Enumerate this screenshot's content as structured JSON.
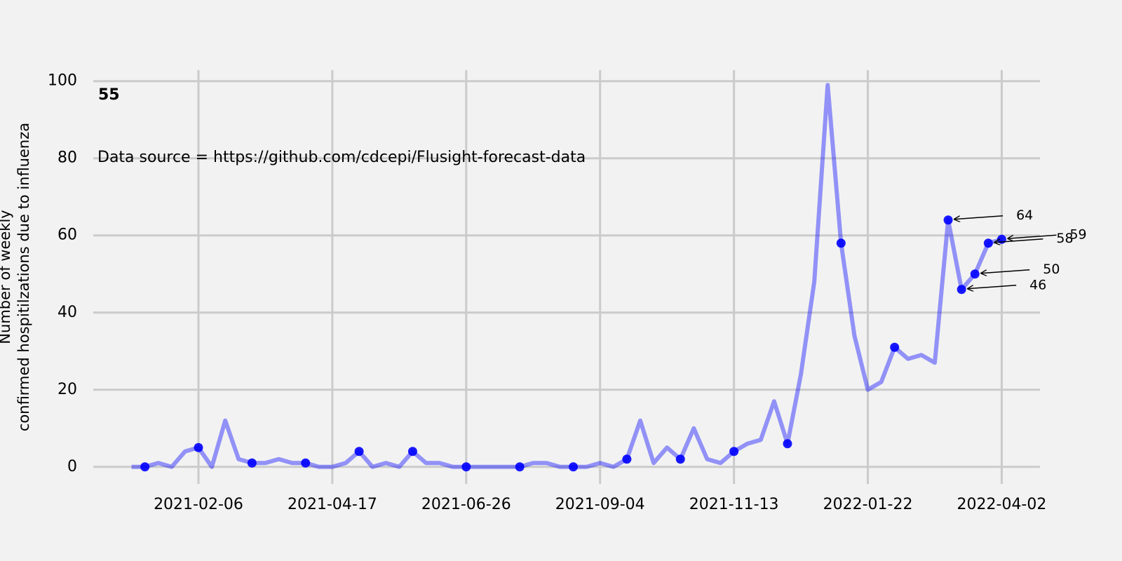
{
  "chart_data": {
    "type": "line",
    "title": "55",
    "source": "Data source = https://github.com/cdcepi/Flusight-forecast-data",
    "ylabel": [
      "Number of weekly",
      "confirmed hospitilzations due to influenza"
    ],
    "x": [
      "2021-01-02",
      "2021-01-09",
      "2021-01-16",
      "2021-01-23",
      "2021-01-30",
      "2021-02-06",
      "2021-02-13",
      "2021-02-20",
      "2021-02-27",
      "2021-03-06",
      "2021-03-13",
      "2021-03-20",
      "2021-03-27",
      "2021-04-03",
      "2021-04-10",
      "2021-04-17",
      "2021-04-24",
      "2021-05-01",
      "2021-05-08",
      "2021-05-15",
      "2021-05-22",
      "2021-05-29",
      "2021-06-05",
      "2021-06-12",
      "2021-06-19",
      "2021-06-26",
      "2021-07-03",
      "2021-07-10",
      "2021-07-17",
      "2021-07-24",
      "2021-07-31",
      "2021-08-07",
      "2021-08-14",
      "2021-08-21",
      "2021-08-28",
      "2021-09-04",
      "2021-09-11",
      "2021-09-18",
      "2021-09-25",
      "2021-10-02",
      "2021-10-09",
      "2021-10-16",
      "2021-10-23",
      "2021-10-30",
      "2021-11-06",
      "2021-11-13",
      "2021-11-20",
      "2021-11-27",
      "2021-12-04",
      "2021-12-11",
      "2021-12-18",
      "2021-12-25",
      "2022-01-01",
      "2022-01-08",
      "2022-01-15",
      "2022-01-22",
      "2022-01-29",
      "2022-02-05",
      "2022-02-12",
      "2022-02-19",
      "2022-02-26",
      "2022-03-05",
      "2022-03-12",
      "2022-03-19",
      "2022-03-26",
      "2022-04-02"
    ],
    "series": [
      {
        "color": "#0000ff",
        "style": "line",
        "values": [
          0,
          0,
          1,
          0,
          4,
          5,
          0,
          12,
          2,
          1,
          1,
          2,
          1,
          1,
          0,
          0,
          1,
          4,
          0,
          1,
          0,
          4,
          1,
          1,
          0,
          0,
          0,
          0,
          0,
          0,
          1,
          1,
          0,
          0,
          0,
          1,
          0,
          2,
          12,
          1,
          5,
          2,
          10,
          2,
          1,
          4,
          6,
          7,
          17,
          6,
          24,
          48,
          99,
          58,
          34,
          20,
          22,
          31,
          28,
          29,
          27,
          64,
          46,
          50,
          58,
          59
        ]
      },
      {
        "color": "#0000ff",
        "style": "markers",
        "values": [
          null,
          0,
          null,
          null,
          null,
          5,
          null,
          null,
          null,
          1,
          null,
          null,
          null,
          1,
          null,
          null,
          null,
          4,
          null,
          null,
          null,
          4,
          null,
          null,
          null,
          0,
          null,
          null,
          null,
          0,
          null,
          null,
          null,
          0,
          null,
          null,
          null,
          2,
          null,
          null,
          null,
          2,
          null,
          null,
          null,
          4,
          null,
          null,
          null,
          6,
          null,
          null,
          null,
          58,
          null,
          null,
          null,
          31,
          null,
          null,
          null,
          64,
          46,
          50,
          58,
          59
        ]
      }
    ],
    "annotations": [
      {
        "text": "64",
        "x": "2022-03-05",
        "y": 64
      },
      {
        "text": "46",
        "x": "2022-03-12",
        "y": 46
      },
      {
        "text": "50",
        "x": "2022-03-19",
        "y": 50
      },
      {
        "text": "58",
        "x": "2022-03-26",
        "y": 58
      },
      {
        "text": "59",
        "x": "2022-04-02",
        "y": 59
      }
    ],
    "xlim": [
      "2020-12-13",
      "2022-04-22"
    ],
    "xticks": [
      "2021-02-06",
      "2021-04-17",
      "2021-06-26",
      "2021-09-04",
      "2021-11-13",
      "2022-01-22",
      "2022-04-02"
    ],
    "ylim": [
      -4.95,
      103.95
    ],
    "yticks": [
      0,
      20,
      40,
      60,
      80,
      100
    ],
    "grid": true
  }
}
